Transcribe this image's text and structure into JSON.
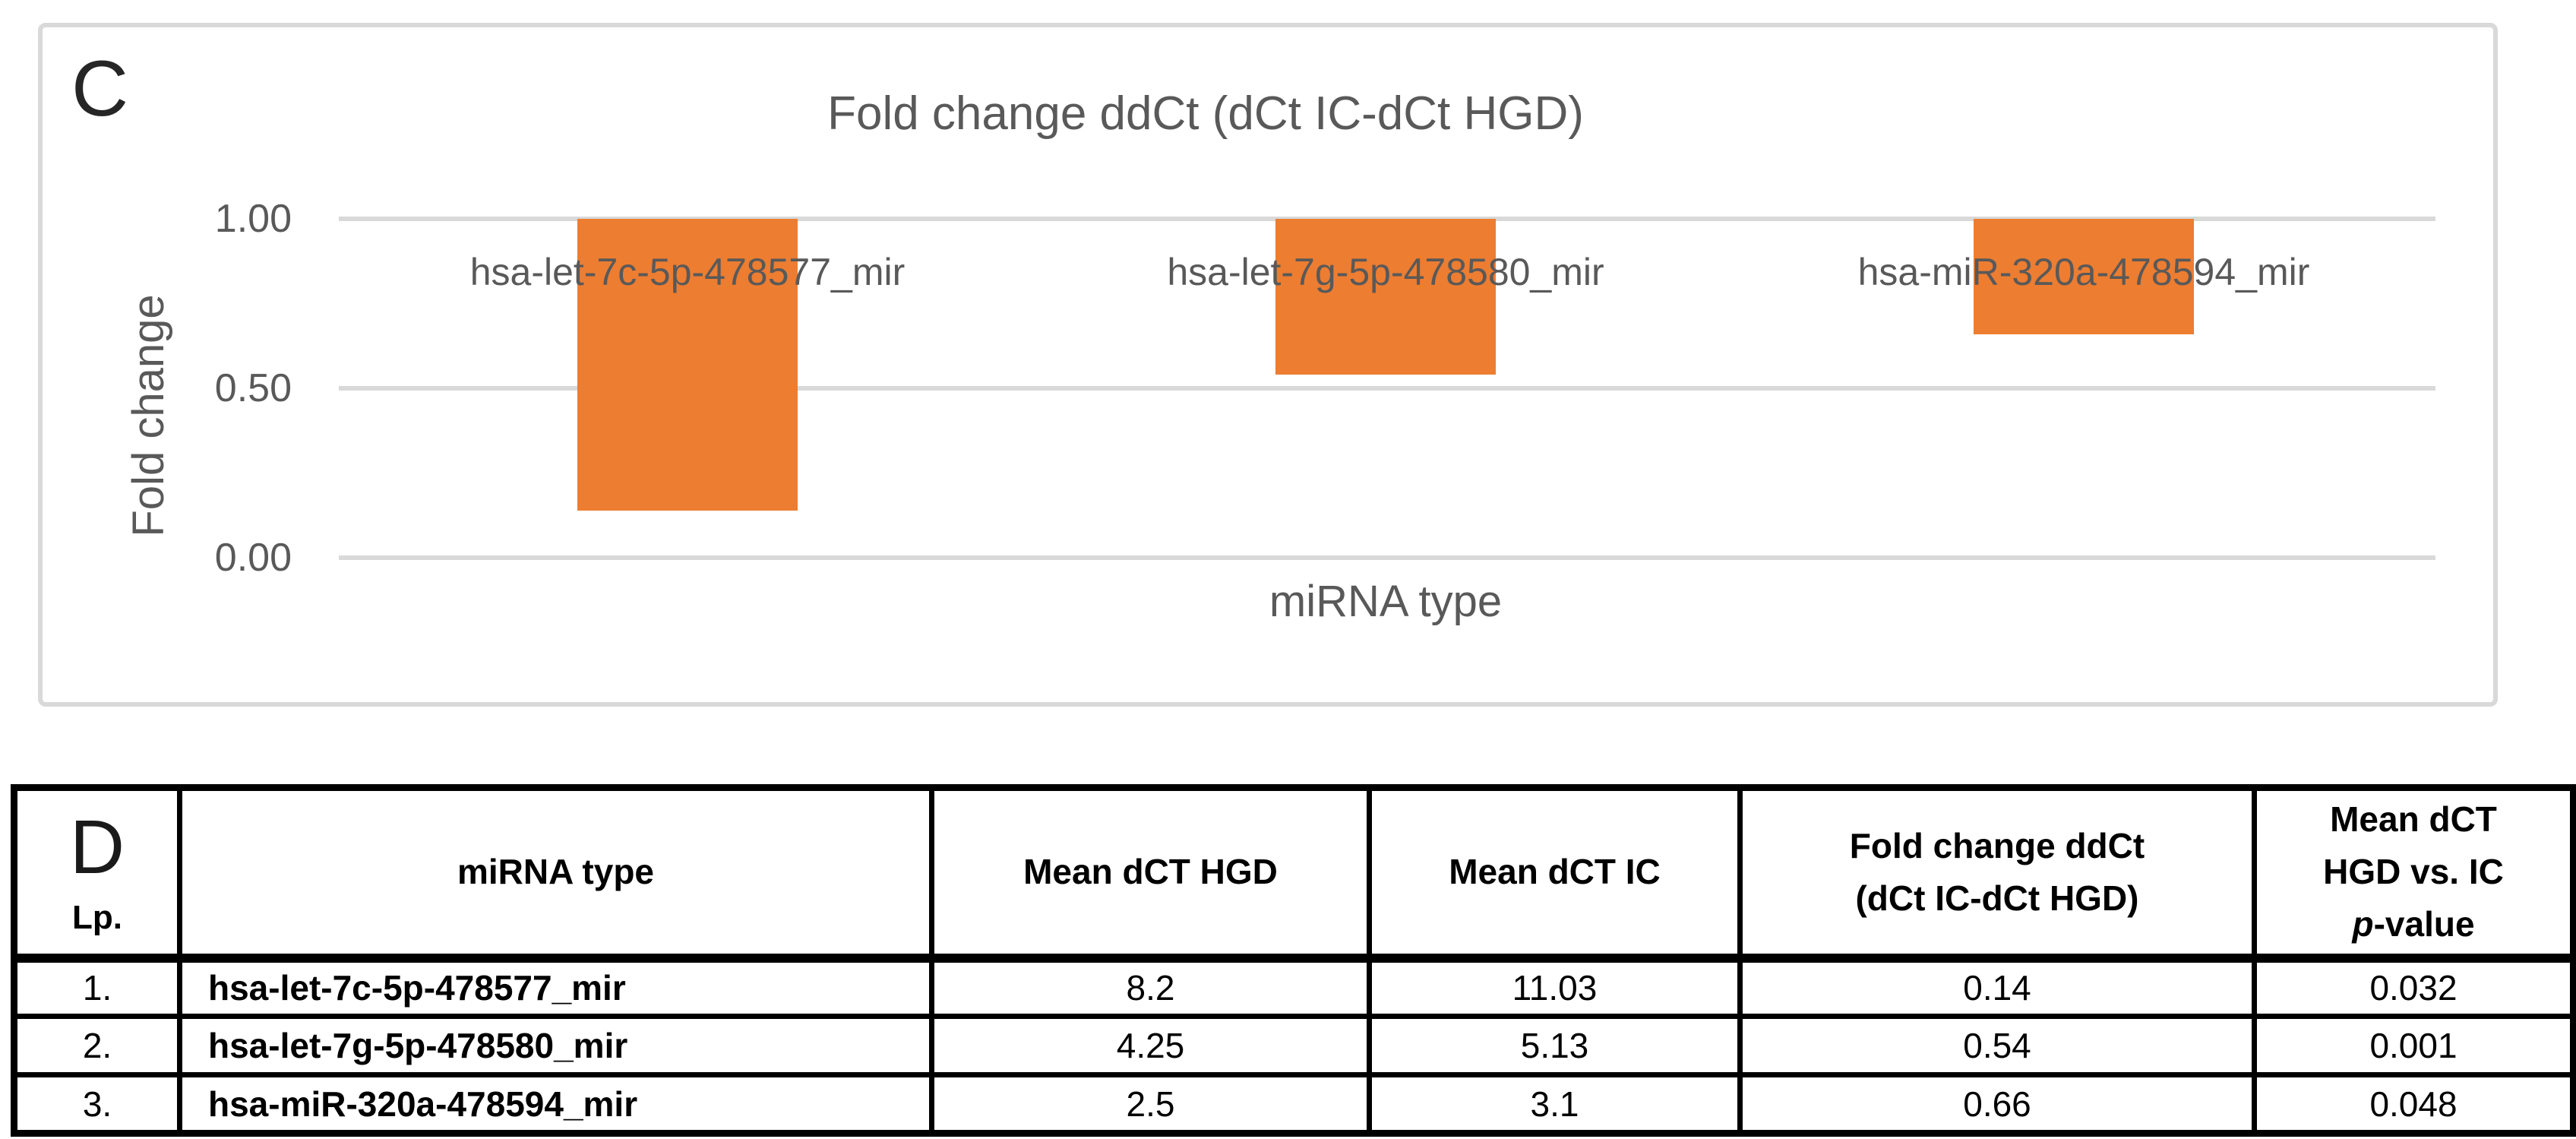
{
  "panel_c": {
    "letter": "C"
  },
  "chart_data": {
    "type": "bar",
    "title": "Fold change ddCt (dCt IC-dCt HGD)",
    "xlabel": "miRNA type",
    "ylabel": "Fold change",
    "categories": [
      "hsa-let-7c-5p-478577_mir",
      "hsa-let-7g-5p-478580_mir",
      "hsa-miR-320a-478594_mir"
    ],
    "values": [
      0.14,
      0.54,
      0.66
    ],
    "ylim": [
      0.0,
      1.0
    ],
    "yticks": [
      "1.00",
      "0.50",
      "0.00"
    ],
    "ytick_values": [
      1.0,
      0.5,
      0.0
    ],
    "axis_crosses_at": 1.0,
    "bar_color": "#ED7D31",
    "grid": true,
    "gridline_color": "#D9D9D9",
    "text_color": "#595959",
    "legend": false
  },
  "panel_d": {
    "letter": "D",
    "table": {
      "headers": {
        "col1": "Lp.",
        "col2": "miRNA type",
        "col3": "Mean dCT HGD",
        "col4": "Mean dCT IC",
        "col5": {
          "line1": "Fold change ddCt",
          "line2": "(dCt IC-dCt HGD)"
        },
        "col6": {
          "line1": "Mean dCT",
          "line2": "HGD vs. IC",
          "p": "p",
          "rest": "-value"
        }
      },
      "rows": [
        {
          "no": "1.",
          "mirna": "hsa-let-7c-5p-478577_mir",
          "mean_dct_hgd": "8.2",
          "mean_dct_ic": "11.03",
          "fold_change": "0.14",
          "p_value": "0.032"
        },
        {
          "no": "2.",
          "mirna": "hsa-let-7g-5p-478580_mir",
          "mean_dct_hgd": "4.25",
          "mean_dct_ic": "5.13",
          "fold_change": "0.54",
          "p_value": "0.001"
        },
        {
          "no": "3.",
          "mirna": "hsa-miR-320a-478594_mir",
          "mean_dct_hgd": "2.5",
          "mean_dct_ic": "3.1",
          "fold_change": "0.66",
          "p_value": "0.048"
        }
      ]
    }
  }
}
